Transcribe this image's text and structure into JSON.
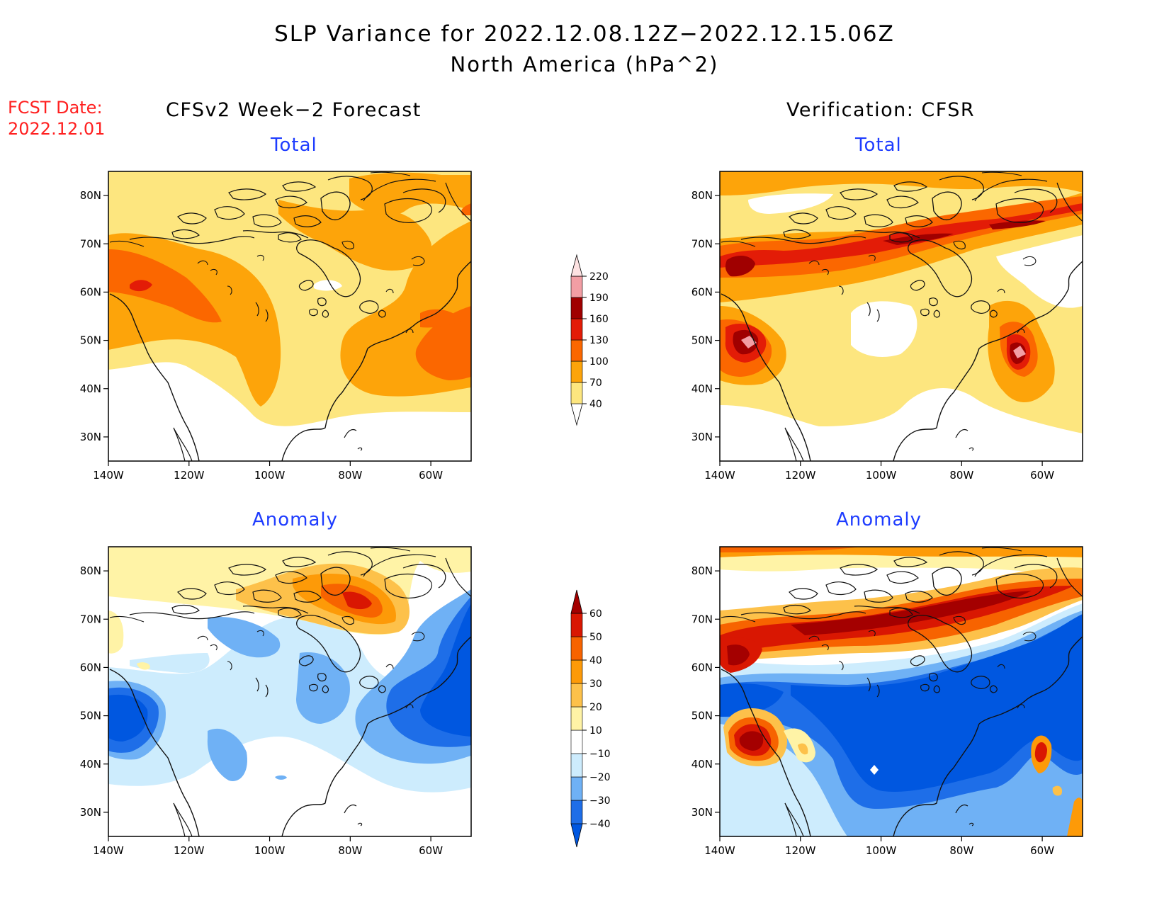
{
  "title": "SLP Variance for 2022.12.08.12Z−2022.12.15.06Z",
  "subtitle": "North America (hPa^2)",
  "fcst_label": "FCST Date:",
  "fcst_date": "2022.12.01",
  "columns": {
    "left": "CFSv2 Week−2 Forecast",
    "right": "Verification: CFSR"
  },
  "panel_titles": {
    "total": "Total",
    "anomaly": "Anomaly"
  },
  "axes": {
    "lon_ticks": [
      "140W",
      "120W",
      "100W",
      "80W",
      "60W"
    ],
    "lat_ticks": [
      "80N",
      "70N",
      "60N",
      "50N",
      "40N",
      "30N"
    ],
    "lon_range": [
      -140,
      -50
    ],
    "lat_range": [
      25,
      85
    ]
  },
  "colorbars": {
    "total": {
      "labels": [
        "40",
        "70",
        "100",
        "130",
        "160",
        "190",
        "220"
      ],
      "colors": [
        "#ffffff",
        "#fde67f",
        "#fda40a",
        "#fb6700",
        "#e31c07",
        "#a00000",
        "#f29ea4",
        "#fde2e2"
      ]
    },
    "anomaly": {
      "labels": [
        "−40",
        "−30",
        "−20",
        "−10",
        "10",
        "20",
        "30",
        "40",
        "50",
        "60"
      ],
      "colors": [
        "#0057e0",
        "#1e6ee8",
        "#6fb1f5",
        "#cdecfd",
        "#ffffff",
        "#fff3a6",
        "#fdc14a",
        "#fd9a08",
        "#f76300",
        "#d91702",
        "#a40000"
      ]
    }
  },
  "map_data": {
    "type": "contour-fill-maps",
    "panels": [
      {
        "id": "forecast-total",
        "column": "left",
        "row": "total",
        "colorbar": "total"
      },
      {
        "id": "verification-total",
        "column": "right",
        "row": "total",
        "colorbar": "total"
      },
      {
        "id": "forecast-anomaly",
        "column": "left",
        "row": "anomaly",
        "colorbar": "anomaly"
      },
      {
        "id": "verification-anomaly",
        "column": "right",
        "row": "anomaly",
        "colorbar": "anomaly"
      }
    ]
  }
}
